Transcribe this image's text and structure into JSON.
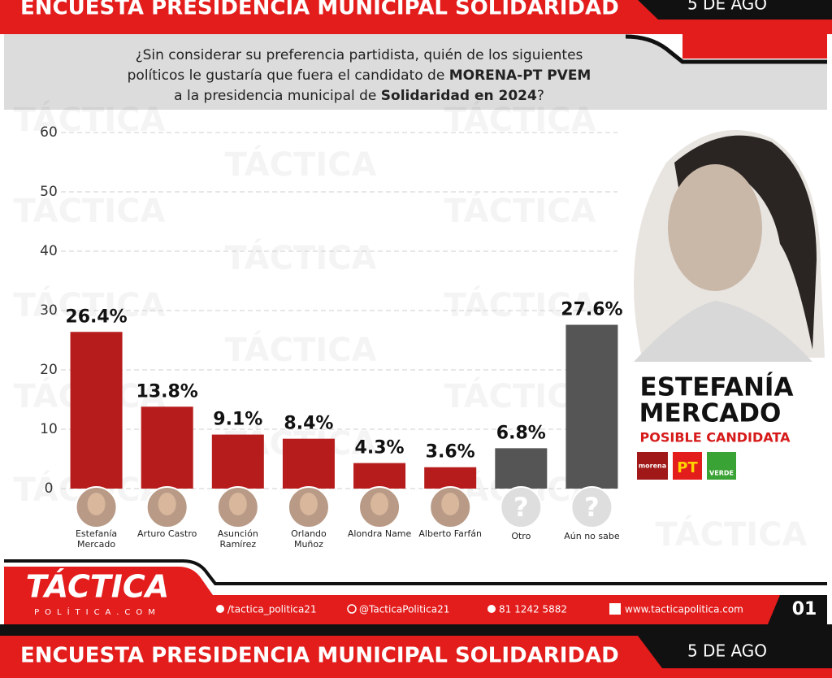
{
  "header": {
    "title": "ENCUESTA PRESIDENCIA MUNICIPAL SOLIDARIDAD",
    "date": "5 DE AGO"
  },
  "question": [
    [
      {
        "text": "¿Sin considerar su preferencia partidista, quién de los siguientes"
      }
    ],
    [
      {
        "text": "políticos le gustaría que fuera el candidato de "
      },
      {
        "text": "MORENA-PT PVEM",
        "bold": true
      }
    ],
    [
      {
        "text": "a la presidencia municipal de "
      },
      {
        "text": "Solidaridad en 2024",
        "bold": true
      },
      {
        "text": "?"
      }
    ]
  ],
  "watermark": "TÁCTICA",
  "chart_data": {
    "type": "bar",
    "categories": [
      "Estefanía Mercado",
      "Arturo Castro",
      "Asunción Ramírez",
      "Orlando Muñoz",
      "Alondra Name",
      "Alberto Farfán",
      "Otro",
      "Aún no sabe"
    ],
    "values": [
      26.4,
      13.8,
      9.1,
      8.4,
      4.3,
      3.6,
      6.8,
      27.6
    ],
    "value_labels": [
      "26.4%",
      "13.8%",
      "9.1%",
      "8.4%",
      "4.3%",
      "3.6%",
      "6.8%",
      "27.6%"
    ],
    "colors": [
      "#b71c1c",
      "#b71c1c",
      "#b71c1c",
      "#b71c1c",
      "#b71c1c",
      "#b71c1c",
      "#555555",
      "#555555"
    ],
    "ylim": [
      0,
      60
    ],
    "yticks": [
      0,
      10,
      20,
      30,
      40,
      50,
      60
    ],
    "grid": true
  },
  "unknown_mark": "?",
  "candidate": {
    "name_lines": [
      "ESTEFANÍA",
      "MERCADO"
    ],
    "subtitle": "POSIBLE CANDIDATA",
    "parties": [
      "morena",
      "PT",
      "VERDE"
    ]
  },
  "footer": {
    "brand": "TÁCTICA",
    "brand_sub": "POLÍTICA.COM",
    "facebook": "/tactica_politica21",
    "instagram": "@TacticaPolitica21",
    "phone": "81 1242 5882",
    "web": "www.tacticapolitica.com",
    "page": "01"
  }
}
